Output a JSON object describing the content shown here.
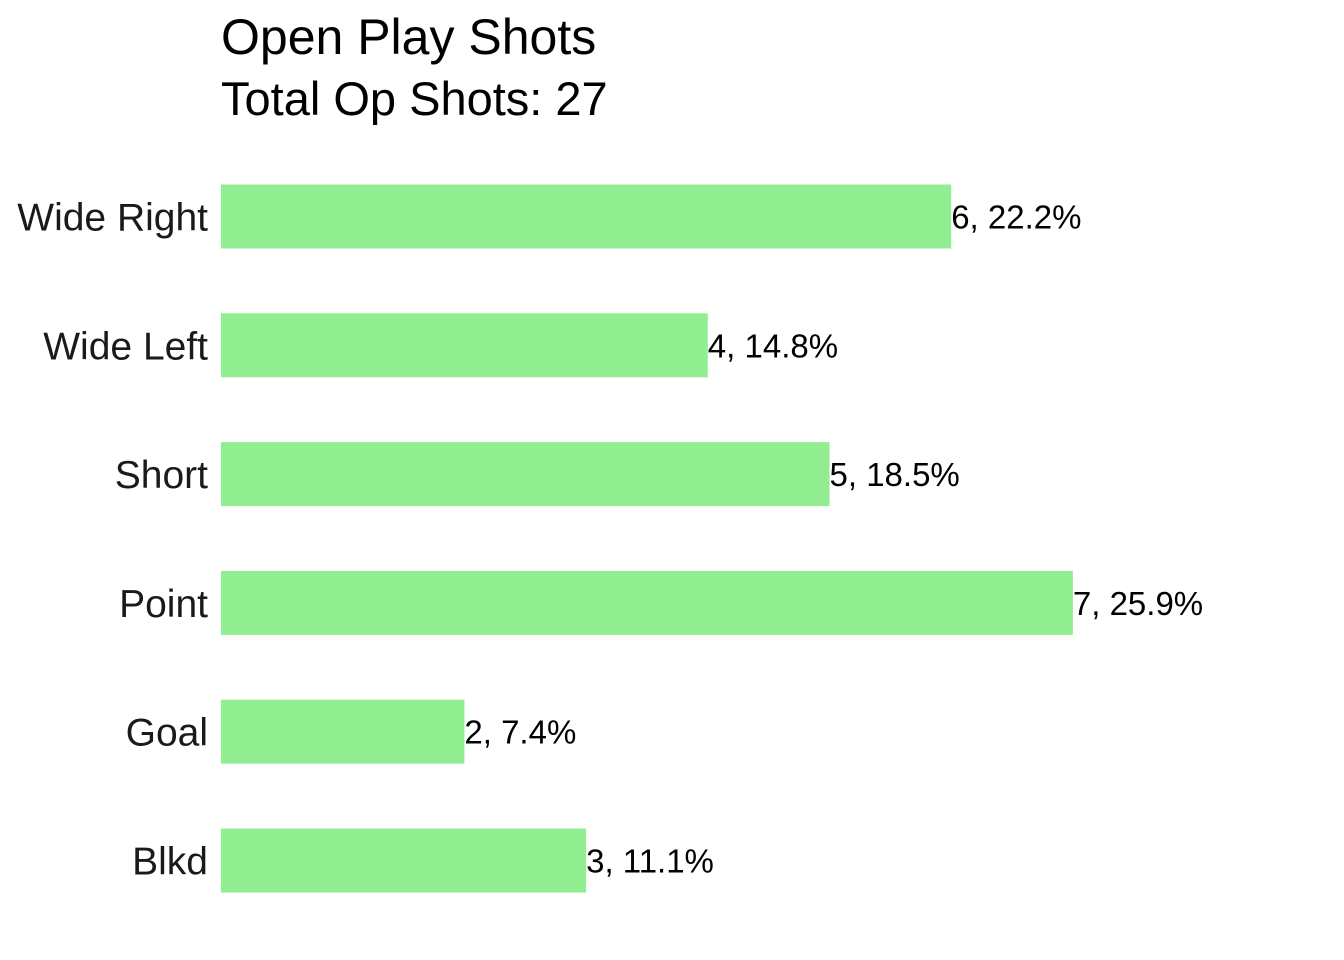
{
  "chart_data": {
    "type": "bar",
    "orientation": "horizontal",
    "title": "Open Play Shots",
    "subtitle": "Total Op Shots: 27",
    "xlabel": "",
    "ylabel": "",
    "categories": [
      "Wide Right",
      "Wide Left",
      "Short",
      "Point",
      "Goal",
      "Blkd"
    ],
    "values": [
      6,
      4,
      5,
      7,
      2,
      3
    ],
    "data_labels": [
      "6, 22.2%",
      "4, 14.8%",
      "5, 18.5%",
      "7, 25.9%",
      "2, 7.4%",
      "3, 11.1%"
    ],
    "xlim": [
      0,
      7
    ],
    "bar_color": "#90ee90",
    "grid": false,
    "legend": "none"
  }
}
